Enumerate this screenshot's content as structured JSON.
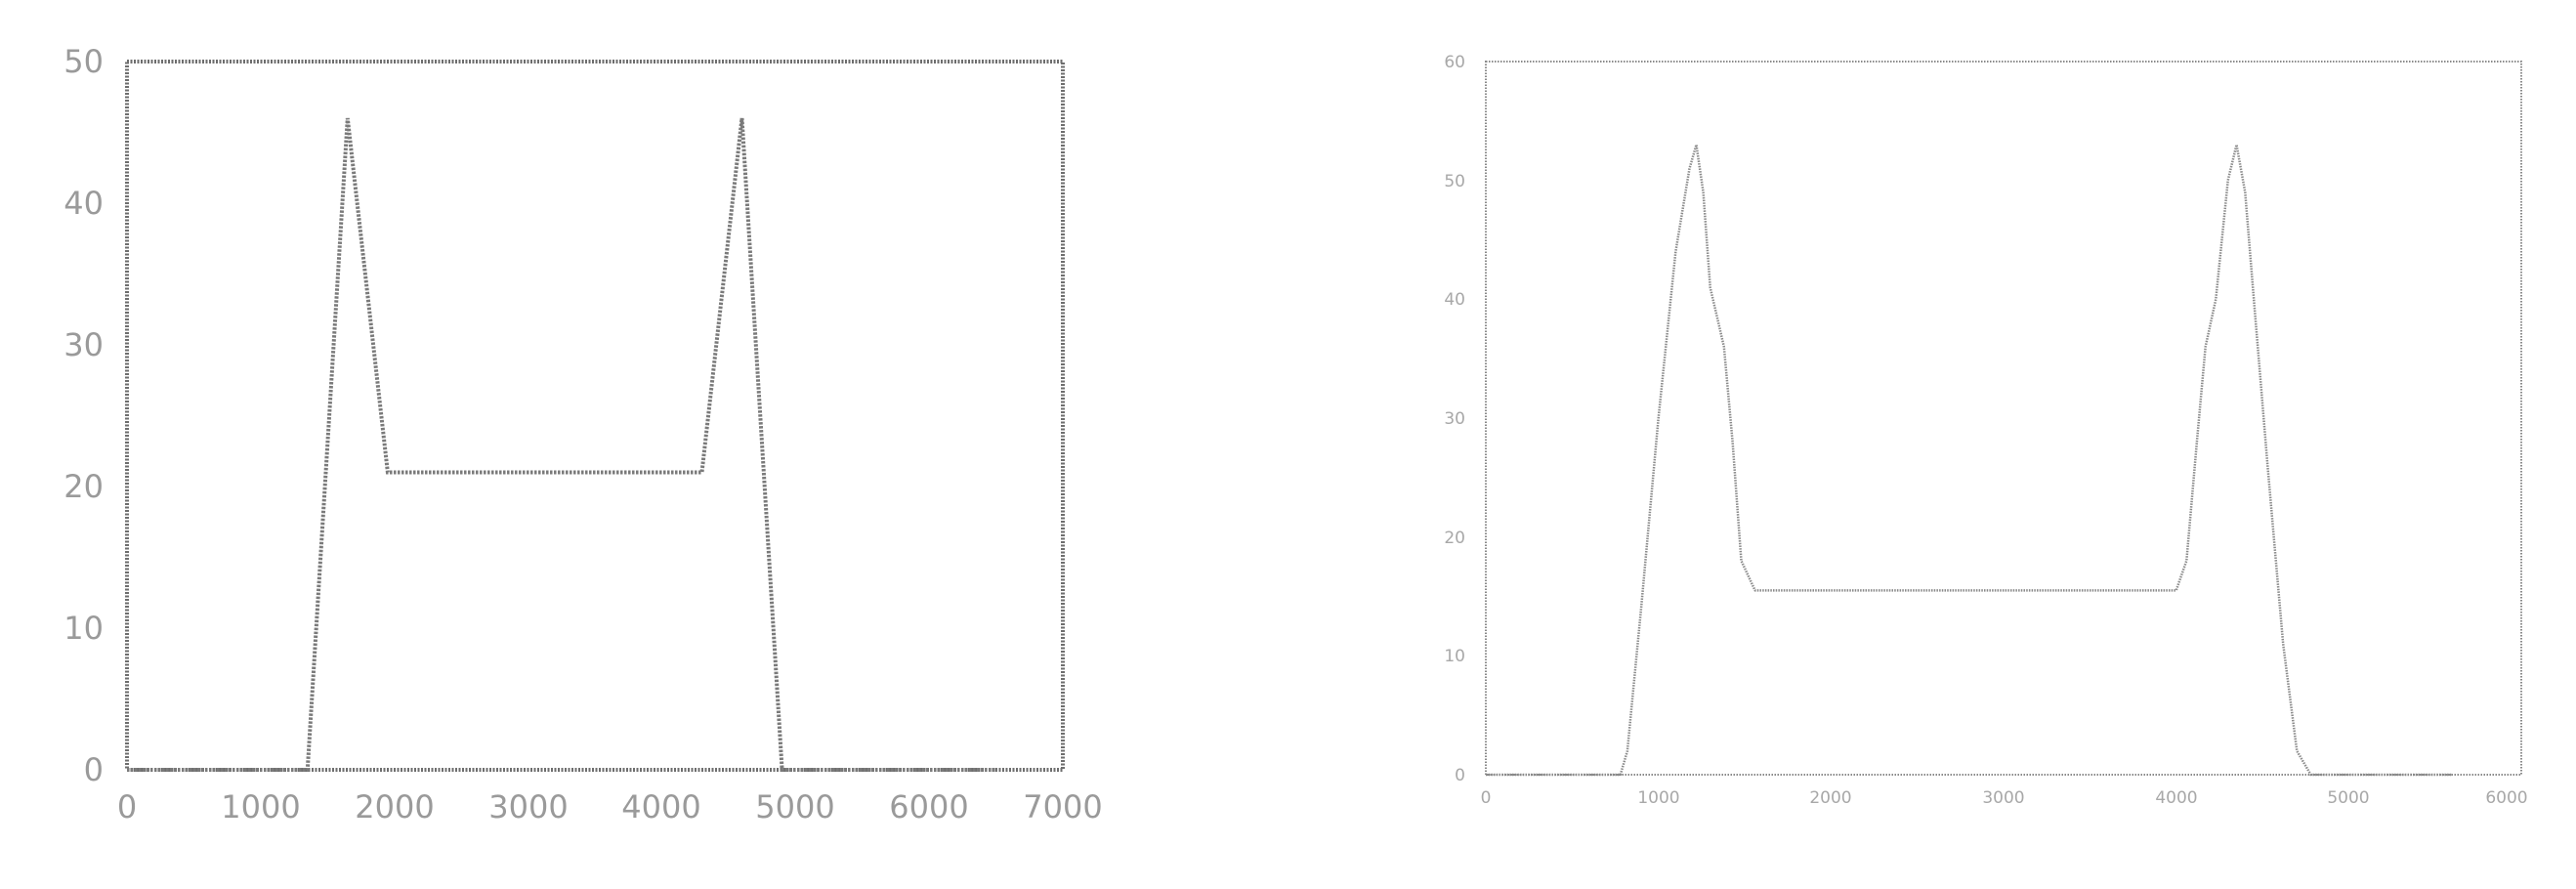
{
  "chart_data": [
    {
      "type": "line",
      "title": "",
      "xlabel": "",
      "ylabel": "",
      "xlim": [
        0,
        7000
      ],
      "ylim": [
        0,
        50
      ],
      "xticks": [
        "0",
        "1000",
        "2000",
        "3000",
        "4000",
        "5000",
        "6000",
        "7000"
      ],
      "yticks": [
        "0",
        "10",
        "20",
        "30",
        "40",
        "50"
      ],
      "grid": false,
      "legend": "none",
      "line_color": "#7a7a7a",
      "series": [
        {
          "x": [
            0,
            1350,
            1650,
            1950,
            4300,
            4600,
            4900,
            6500
          ],
          "y": [
            0,
            0,
            46,
            21,
            21,
            46,
            0,
            0
          ]
        }
      ]
    },
    {
      "type": "line",
      "title": "",
      "xlabel": "",
      "ylabel": "",
      "xlim": [
        0,
        6000
      ],
      "ylim": [
        0,
        60
      ],
      "xticks": [
        "0",
        "1000",
        "2000",
        "3000",
        "4000",
        "5000",
        "6000"
      ],
      "yticks": [
        "0",
        "10",
        "20",
        "30",
        "40",
        "50",
        "60"
      ],
      "grid": false,
      "legend": "none",
      "line_color": "#8a8a8a",
      "series": [
        {
          "x": [
            0,
            780,
            820,
            900,
            1000,
            1100,
            1180,
            1220,
            1260,
            1300,
            1380,
            1430,
            1480,
            1560,
            1700,
            3000,
            4000,
            4060,
            4120,
            4170,
            4230,
            4300,
            4350,
            4400,
            4450,
            4530,
            4620,
            4700,
            4780,
            4850,
            5600
          ],
          "y": [
            0,
            0,
            2,
            14,
            30,
            44,
            51,
            53,
            49,
            41,
            36,
            28,
            18,
            15.5,
            15.5,
            15.5,
            15.5,
            18,
            28,
            36,
            40,
            50,
            53,
            49,
            40,
            26,
            11,
            2,
            0,
            0,
            0
          ]
        }
      ]
    }
  ]
}
